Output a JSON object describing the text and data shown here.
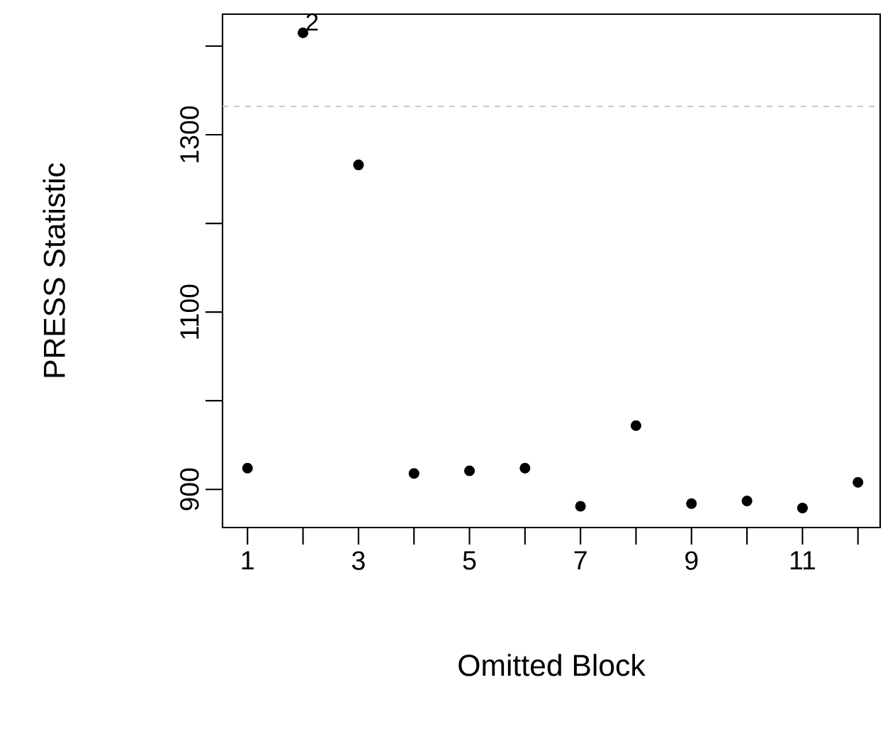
{
  "chart_data": {
    "type": "scatter",
    "xlabel": "Omitted Block",
    "ylabel": "PRESS Statistic",
    "x": [
      1,
      2,
      3,
      4,
      5,
      6,
      7,
      8,
      9,
      10,
      11,
      12
    ],
    "values": [
      924,
      1415,
      1266,
      918,
      921,
      924,
      881,
      972,
      884,
      887,
      879,
      908
    ],
    "color": "#000000",
    "marker": "circle",
    "xlim": [
      0.55,
      12.4
    ],
    "ylim": [
      857,
      1436
    ],
    "xticks": [
      1,
      {
        "value": 2,
        "label": null
      },
      3,
      {
        "value": 4,
        "label": null
      },
      5,
      {
        "value": 6,
        "label": null
      },
      7,
      {
        "value": 8,
        "label": null
      },
      9,
      {
        "value": 10,
        "label": null
      },
      11,
      {
        "value": 12,
        "label": null
      }
    ],
    "yticks": [
      900,
      {
        "value": 1000,
        "label": null
      },
      1100,
      {
        "value": 1200,
        "label": null
      },
      1300,
      {
        "value": 1400,
        "label": null
      }
    ],
    "ref_lines": [
      {
        "axis": "y",
        "value": 1332,
        "color": "#c8c8c8",
        "line_style": "dashed"
      }
    ],
    "annotations": [
      {
        "text": "2",
        "x": 2,
        "y": 1415
      }
    ],
    "grid": false
  }
}
